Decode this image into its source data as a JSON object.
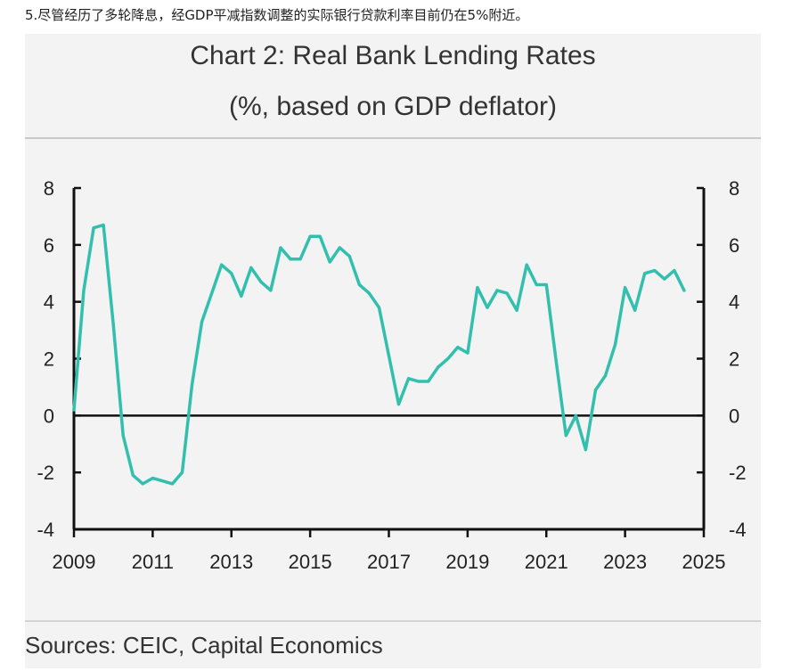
{
  "caption": "5.尽管经历了多轮降息，经GDP平减指数调整的实际银行贷款利率目前仍在5%附近。",
  "sources": "Sources: CEIC, Capital Economics",
  "colors": {
    "line": "#33bfae",
    "axis": "#111111",
    "panel": "#f3f3f3"
  },
  "chart_data": {
    "type": "line",
    "title": "Chart 2: Real Bank Lending Rates",
    "subtitle": "(%, based on GDP deflator)",
    "xlabel": "",
    "ylabel": "",
    "xlim": [
      2009,
      2025
    ],
    "ylim": [
      -4,
      8
    ],
    "yticks": [
      8,
      6,
      4,
      2,
      0,
      -2,
      -4
    ],
    "yticks_right": [
      8,
      6,
      4,
      2,
      0,
      -2,
      -4
    ],
    "xticks": [
      2009,
      2011,
      2013,
      2015,
      2017,
      2019,
      2021,
      2023,
      2025
    ],
    "ytick_labels": [
      "8",
      "6",
      "4",
      "2",
      "0",
      "-2",
      "-4"
    ],
    "xtick_labels": [
      "2009",
      "2011",
      "2013",
      "2015",
      "2017",
      "2019",
      "2021",
      "2023",
      "2025"
    ],
    "zero_line": true,
    "series": [
      {
        "name": "Real Bank Lending Rate",
        "x": [
          2009.0,
          2009.25,
          2009.5,
          2009.75,
          2010.0,
          2010.25,
          2010.5,
          2010.75,
          2011.0,
          2011.25,
          2011.5,
          2011.75,
          2012.0,
          2012.25,
          2012.5,
          2012.75,
          2013.0,
          2013.25,
          2013.5,
          2013.75,
          2014.0,
          2014.25,
          2014.5,
          2014.75,
          2015.0,
          2015.25,
          2015.5,
          2015.75,
          2016.0,
          2016.25,
          2016.5,
          2016.75,
          2017.0,
          2017.25,
          2017.5,
          2017.75,
          2018.0,
          2018.25,
          2018.5,
          2018.75,
          2019.0,
          2019.25,
          2019.5,
          2019.75,
          2020.0,
          2020.25,
          2020.5,
          2020.75,
          2021.0,
          2021.25,
          2021.5,
          2021.75,
          2022.0,
          2022.25,
          2022.5,
          2022.75,
          2023.0,
          2023.25,
          2023.5,
          2023.75,
          2024.0,
          2024.25,
          2024.5
        ],
        "values": [
          0.2,
          4.4,
          6.6,
          6.7,
          3.2,
          -0.7,
          -2.1,
          -2.4,
          -2.2,
          -2.3,
          -2.4,
          -2.0,
          1.1,
          3.3,
          4.3,
          5.3,
          5.0,
          4.2,
          5.2,
          4.7,
          4.4,
          5.9,
          5.5,
          5.5,
          6.3,
          6.3,
          5.4,
          5.9,
          5.6,
          4.6,
          4.3,
          3.8,
          2.1,
          0.4,
          1.3,
          1.2,
          1.2,
          1.7,
          2.0,
          2.4,
          2.2,
          4.5,
          3.8,
          4.4,
          4.3,
          3.7,
          5.3,
          4.6,
          4.6,
          1.9,
          -0.7,
          0.0,
          -1.2,
          0.9,
          1.4,
          2.5,
          4.5,
          3.7,
          5.0,
          5.1,
          4.8,
          5.1,
          4.4
        ]
      }
    ]
  }
}
